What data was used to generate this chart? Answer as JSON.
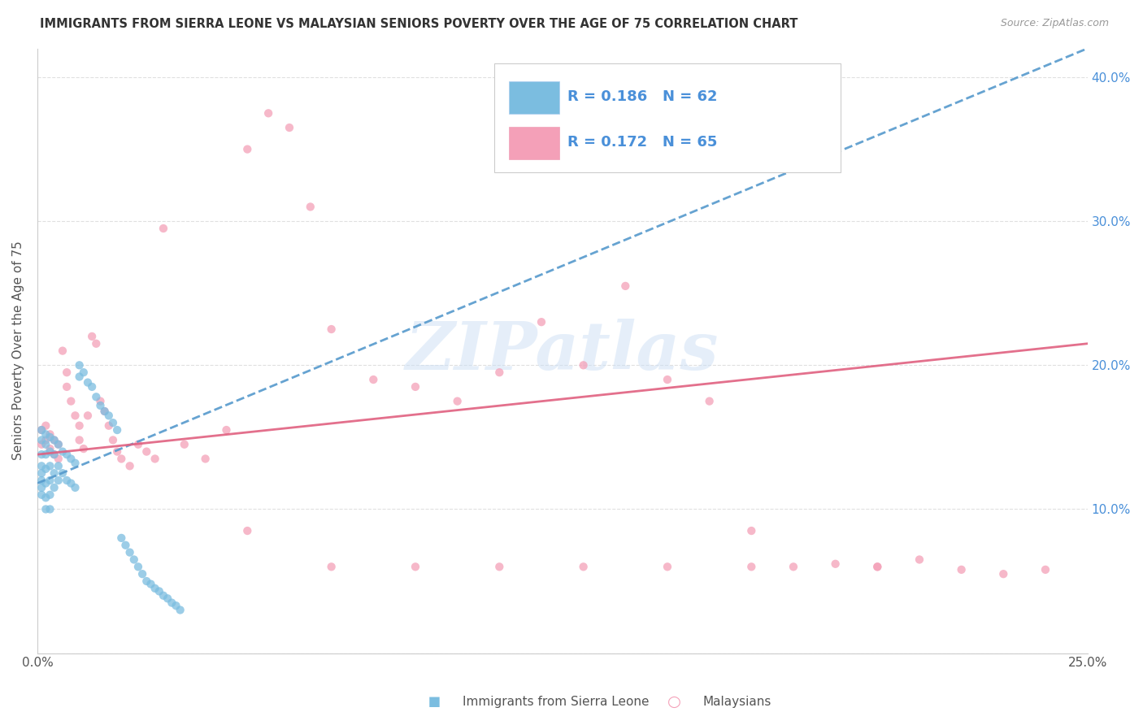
{
  "title": "IMMIGRANTS FROM SIERRA LEONE VS MALAYSIAN SENIORS POVERTY OVER THE AGE OF 75 CORRELATION CHART",
  "source": "Source: ZipAtlas.com",
  "ylabel": "Seniors Poverty Over the Age of 75",
  "xlim": [
    0.0,
    0.25
  ],
  "ylim": [
    0.0,
    0.42
  ],
  "color_blue": "#7bbde0",
  "color_pink": "#f4a0b8",
  "color_blue_line": "#5599cc",
  "color_pink_line": "#e06080",
  "color_blue_text": "#4a90d9",
  "watermark_text": "ZIPatlas",
  "sierra_leone_R": 0.186,
  "sierra_leone_N": 62,
  "malaysian_R": 0.172,
  "malaysian_N": 65,
  "legend_bottom_label1": "Immigrants from Sierra Leone",
  "legend_bottom_label2": "Malaysians",
  "sierra_leone_x": [
    0.001,
    0.001,
    0.001,
    0.001,
    0.001,
    0.001,
    0.001,
    0.001,
    0.002,
    0.002,
    0.002,
    0.002,
    0.002,
    0.002,
    0.002,
    0.003,
    0.003,
    0.003,
    0.003,
    0.003,
    0.003,
    0.004,
    0.004,
    0.004,
    0.004,
    0.005,
    0.005,
    0.005,
    0.006,
    0.006,
    0.007,
    0.007,
    0.008,
    0.008,
    0.009,
    0.009,
    0.01,
    0.01,
    0.011,
    0.012,
    0.013,
    0.014,
    0.015,
    0.016,
    0.017,
    0.018,
    0.019,
    0.02,
    0.021,
    0.022,
    0.023,
    0.024,
    0.025,
    0.026,
    0.027,
    0.028,
    0.029,
    0.03,
    0.031,
    0.032,
    0.033,
    0.034
  ],
  "sierra_leone_y": [
    0.155,
    0.148,
    0.138,
    0.13,
    0.125,
    0.12,
    0.115,
    0.11,
    0.152,
    0.145,
    0.138,
    0.128,
    0.118,
    0.108,
    0.1,
    0.15,
    0.14,
    0.13,
    0.12,
    0.11,
    0.1,
    0.148,
    0.138,
    0.125,
    0.115,
    0.145,
    0.13,
    0.12,
    0.14,
    0.125,
    0.138,
    0.12,
    0.135,
    0.118,
    0.132,
    0.115,
    0.2,
    0.192,
    0.195,
    0.188,
    0.185,
    0.178,
    0.172,
    0.168,
    0.165,
    0.16,
    0.155,
    0.08,
    0.075,
    0.07,
    0.065,
    0.06,
    0.055,
    0.05,
    0.048,
    0.045,
    0.043,
    0.04,
    0.038,
    0.035,
    0.033,
    0.03
  ],
  "malaysian_x": [
    0.001,
    0.001,
    0.002,
    0.002,
    0.003,
    0.003,
    0.004,
    0.004,
    0.005,
    0.005,
    0.006,
    0.007,
    0.007,
    0.008,
    0.009,
    0.01,
    0.01,
    0.011,
    0.012,
    0.013,
    0.014,
    0.015,
    0.016,
    0.017,
    0.018,
    0.019,
    0.02,
    0.022,
    0.024,
    0.026,
    0.028,
    0.03,
    0.035,
    0.04,
    0.045,
    0.05,
    0.055,
    0.06,
    0.065,
    0.07,
    0.08,
    0.09,
    0.1,
    0.11,
    0.12,
    0.13,
    0.14,
    0.15,
    0.16,
    0.17,
    0.18,
    0.19,
    0.2,
    0.21,
    0.22,
    0.23,
    0.24,
    0.05,
    0.07,
    0.09,
    0.11,
    0.13,
    0.15,
    0.17,
    0.2
  ],
  "malaysian_y": [
    0.155,
    0.145,
    0.158,
    0.148,
    0.152,
    0.142,
    0.148,
    0.138,
    0.145,
    0.135,
    0.21,
    0.195,
    0.185,
    0.175,
    0.165,
    0.158,
    0.148,
    0.142,
    0.165,
    0.22,
    0.215,
    0.175,
    0.168,
    0.158,
    0.148,
    0.14,
    0.135,
    0.13,
    0.145,
    0.14,
    0.135,
    0.295,
    0.145,
    0.135,
    0.155,
    0.35,
    0.375,
    0.365,
    0.31,
    0.225,
    0.19,
    0.185,
    0.175,
    0.195,
    0.23,
    0.2,
    0.255,
    0.19,
    0.175,
    0.085,
    0.06,
    0.062,
    0.06,
    0.065,
    0.058,
    0.055,
    0.058,
    0.085,
    0.06,
    0.06,
    0.06,
    0.06,
    0.06,
    0.06,
    0.06
  ],
  "blue_line_x0": 0.0,
  "blue_line_x1": 0.25,
  "blue_line_y0": 0.118,
  "blue_line_y1": 0.42,
  "pink_line_x0": 0.0,
  "pink_line_x1": 0.25,
  "pink_line_y0": 0.138,
  "pink_line_y1": 0.215
}
